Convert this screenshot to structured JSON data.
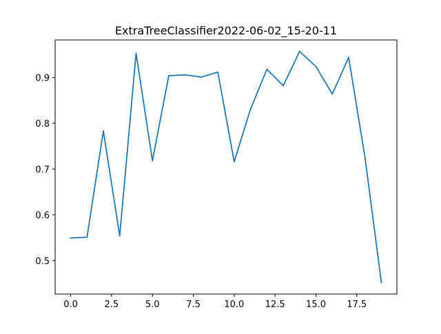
{
  "chart_data": {
    "type": "line",
    "title": "ExtraTreeClassifier2022-06-02_15-20-11",
    "xlabel": "",
    "ylabel": "",
    "x": [
      0,
      1,
      2,
      3,
      4,
      5,
      6,
      7,
      8,
      9,
      10,
      11,
      12,
      13,
      14,
      15,
      16,
      17,
      18,
      19
    ],
    "series": [
      {
        "values": [
          0.549,
          0.551,
          0.783,
          0.554,
          0.953,
          0.718,
          0.904,
          0.906,
          0.901,
          0.912,
          0.716,
          0.831,
          0.918,
          0.882,
          0.957,
          0.924,
          0.864,
          0.944,
          0.725,
          0.452
        ],
        "color": "#1f77b4"
      }
    ],
    "xlim": [
      -0.95,
      19.95
    ],
    "ylim": [
      0.4266,
      0.9822
    ],
    "xticks": [
      0,
      2.5,
      5,
      7.5,
      10,
      12.5,
      15,
      17.5
    ],
    "xtick_labels": [
      "0.0",
      "2.5",
      "5.0",
      "7.5",
      "10.0",
      "12.5",
      "15.0",
      "17.5"
    ],
    "yticks": [
      0.5,
      0.6,
      0.7,
      0.8,
      0.9
    ],
    "ytick_labels": [
      "0.5",
      "0.6",
      "0.7",
      "0.8",
      "0.9"
    ],
    "grid": false,
    "legend": "none"
  }
}
